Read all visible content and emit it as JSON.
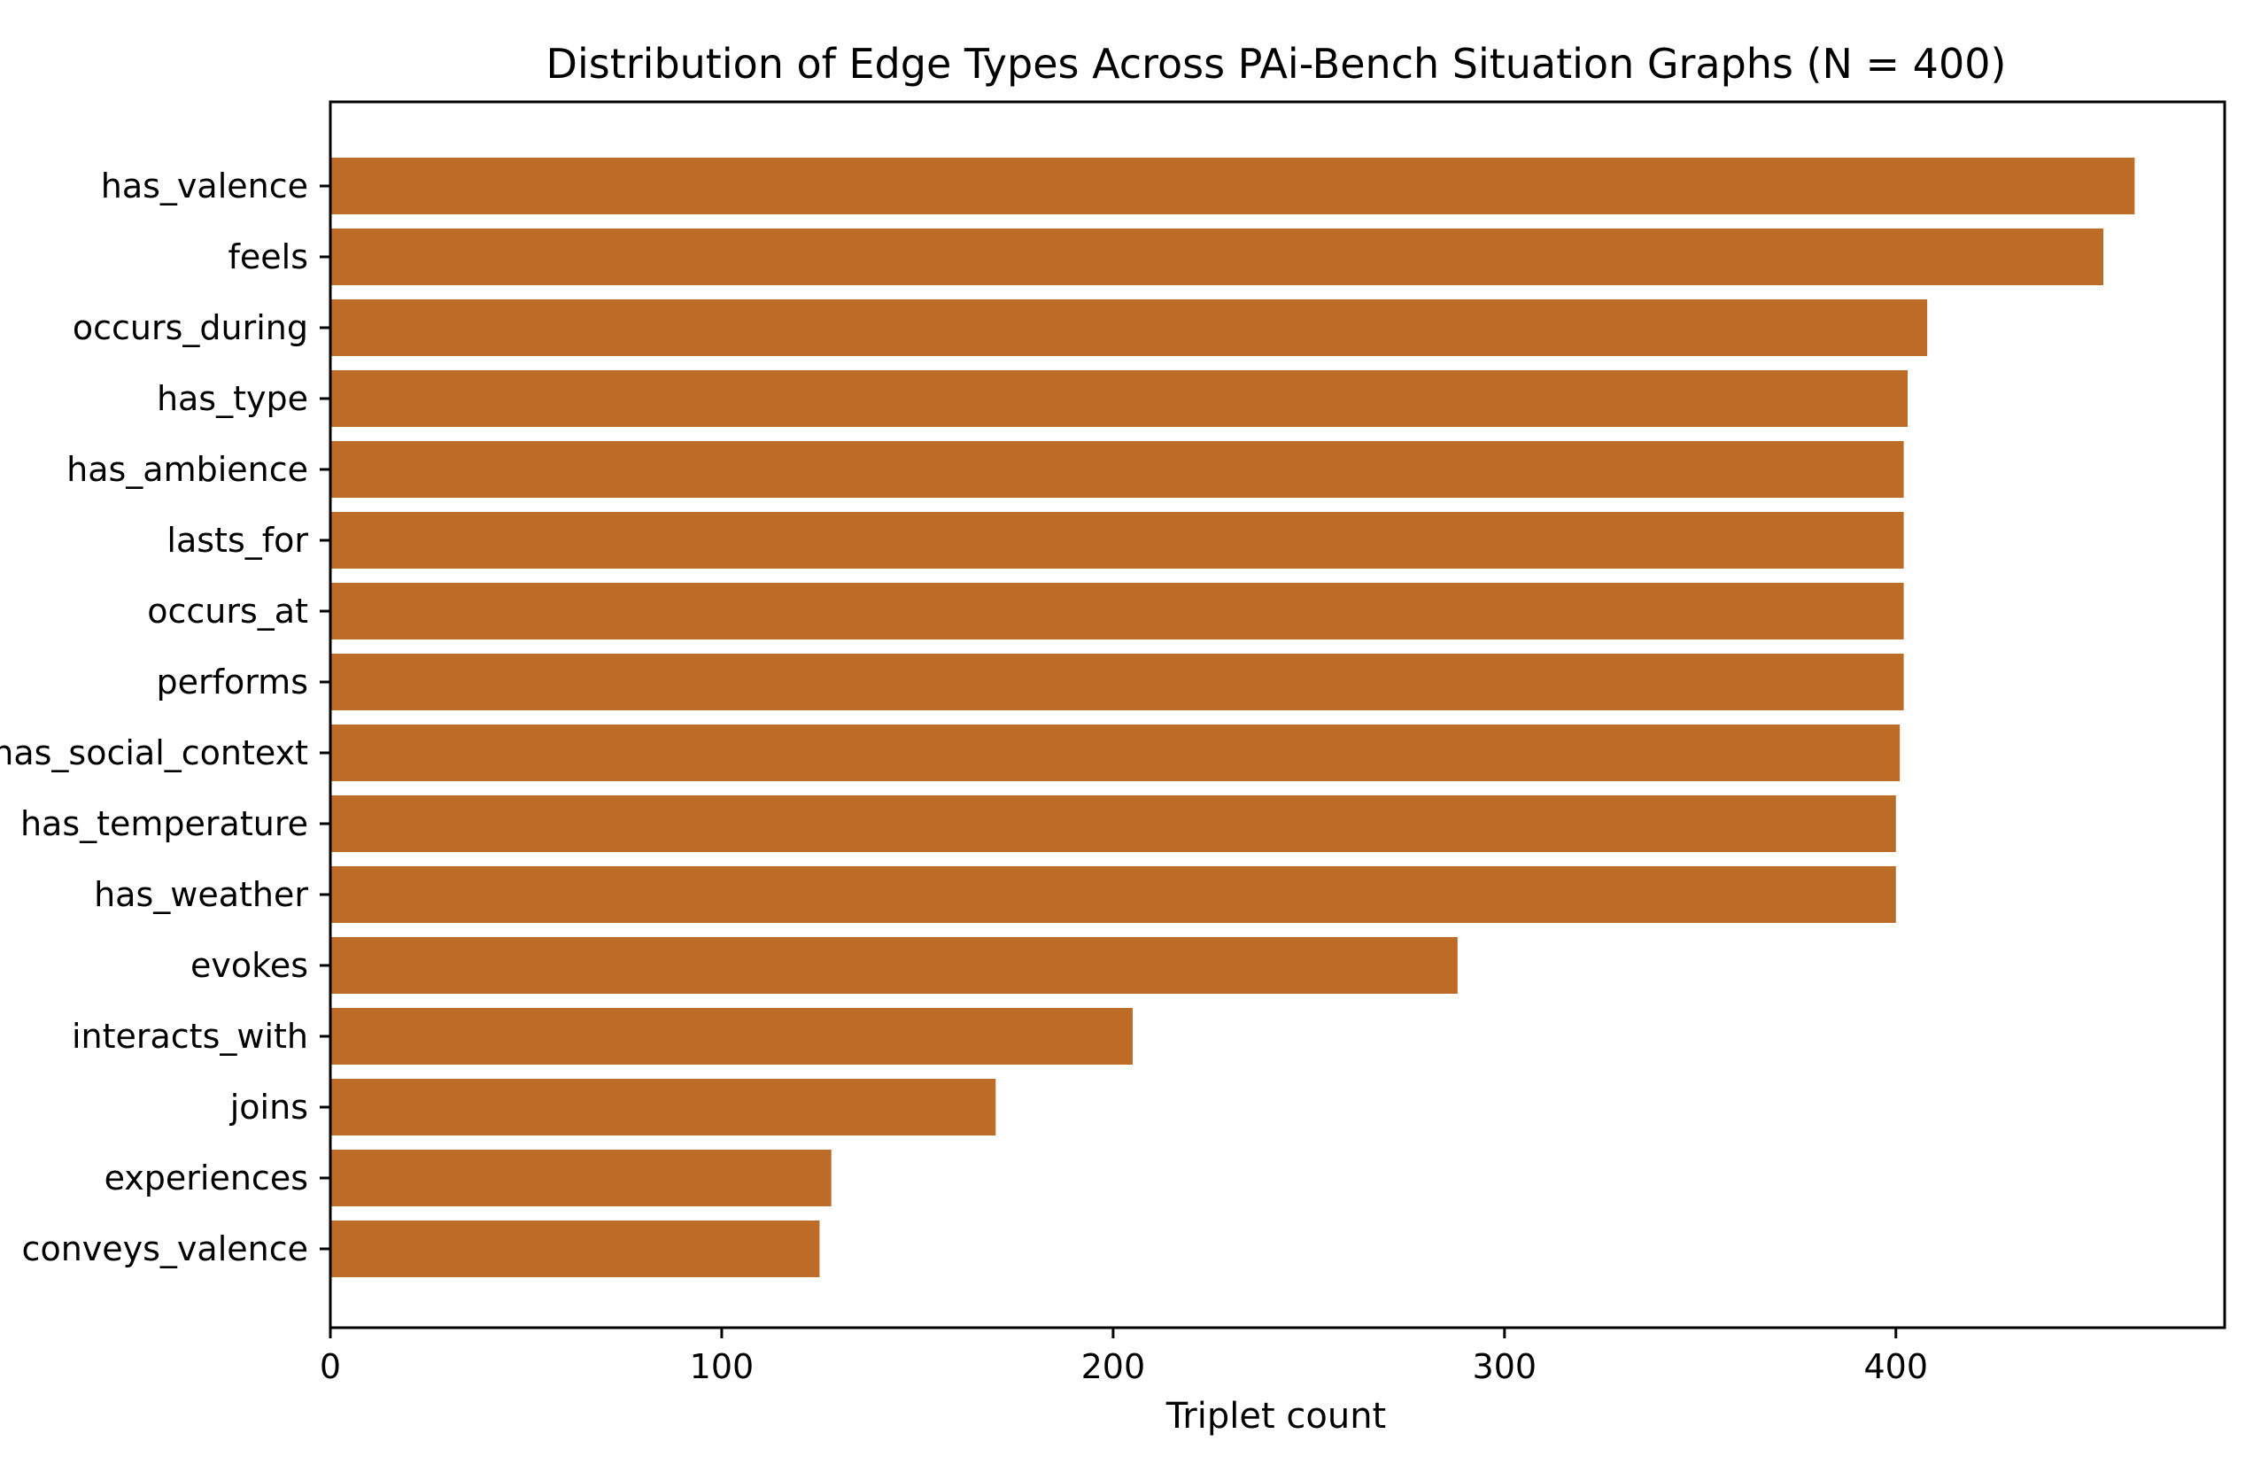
{
  "chart_data": {
    "type": "bar",
    "orientation": "horizontal",
    "title": "Distribution of Edge Types Across PAi-Bench Situation Graphs (N = 400)",
    "xlabel": "Triplet count",
    "ylabel": "",
    "categories": [
      "has_valence",
      "feels",
      "occurs_during",
      "has_type",
      "has_ambience",
      "lasts_for",
      "occurs_at",
      "performs",
      "has_social_context",
      "has_temperature",
      "has_weather",
      "evokes",
      "interacts_with",
      "joins",
      "experiences",
      "conveys_valence"
    ],
    "values": [
      461,
      453,
      408,
      403,
      402,
      402,
      402,
      402,
      401,
      400,
      400,
      288,
      205,
      170,
      128,
      125
    ],
    "xlim": [
      0,
      484
    ],
    "xticks": [
      0,
      100,
      200,
      300,
      400
    ],
    "xtick_labels": [
      "0",
      "100",
      "200",
      "300",
      "400"
    ],
    "grid": false,
    "legend": "none",
    "bar_color": "#bc6c26"
  }
}
